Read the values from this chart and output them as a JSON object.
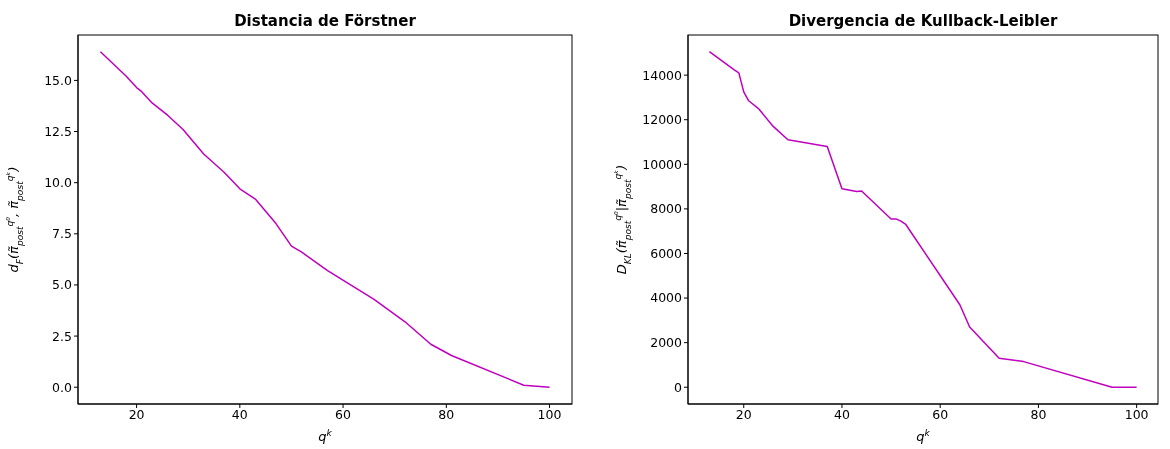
{
  "chart_data": [
    {
      "type": "line",
      "title": "Distancia de Förstner",
      "xlabel": "q$^{k}$",
      "ylabel": "d$_{F}$(π̃$_{post}$$^{q⁰}$, π̃$_{post}$$^{qᵏ}$)",
      "xlim": [
        8.65,
        104.35
      ],
      "xticks": [
        20,
        40,
        60,
        80,
        100
      ],
      "ylim": [
        -0.82,
        17.22
      ],
      "yticks": [
        {
          "value": 0,
          "label": "0.0"
        },
        {
          "value": 2.5,
          "label": "2.5"
        },
        {
          "value": 5,
          "label": "5.0"
        },
        {
          "value": 7.5,
          "label": "7.5"
        },
        {
          "value": 10,
          "label": "10.0"
        },
        {
          "value": 12.5,
          "label": "12.5"
        },
        {
          "value": 15,
          "label": "15.0"
        }
      ],
      "marker": "none",
      "line_style": "solid",
      "x": [
        13,
        18,
        20,
        21,
        23,
        26,
        29,
        33,
        37,
        40,
        43,
        47,
        50,
        52,
        57,
        66,
        72,
        77,
        81,
        95,
        100
      ],
      "series": [
        {
          "color": "#bf00bf",
          "values": [
            16.4,
            15.2,
            14.65,
            14.45,
            13.9,
            13.3,
            12.6,
            11.4,
            10.5,
            9.7,
            9.2,
            8.0,
            6.9,
            6.6,
            5.7,
            4.3,
            3.2,
            2.1,
            1.55,
            0.1,
            0.0
          ]
        }
      ]
    },
    {
      "type": "line",
      "title": "Divergencia de Kullback-Leibler",
      "xlabel": "q$^{k}$",
      "ylabel": "D$_{KL}$(π̃$_{post}$$^{q⁰}$|π̃$_{post}$$^{qᵏ}$)",
      "xlim": [
        8.65,
        104.35
      ],
      "xticks": [
        20,
        40,
        60,
        80,
        100
      ],
      "ylim": [
        -752,
        15800
      ],
      "yticks": [
        0,
        2000,
        4000,
        6000,
        8000,
        10000,
        12000,
        14000
      ],
      "marker": "none",
      "line_style": "solid",
      "x": [
        13,
        18,
        19,
        20,
        21,
        23,
        26,
        29,
        37,
        40,
        43,
        44,
        50,
        51,
        52,
        53,
        64,
        66,
        72,
        77,
        95,
        100
      ],
      "series": [
        {
          "color": "#bf00bf",
          "values": [
            15050,
            14250,
            14100,
            13250,
            12850,
            12500,
            11700,
            11100,
            10800,
            8900,
            8780,
            8800,
            7550,
            7550,
            7450,
            7300,
            3700,
            2700,
            1300,
            1150,
            0,
            0
          ]
        }
      ]
    }
  ]
}
